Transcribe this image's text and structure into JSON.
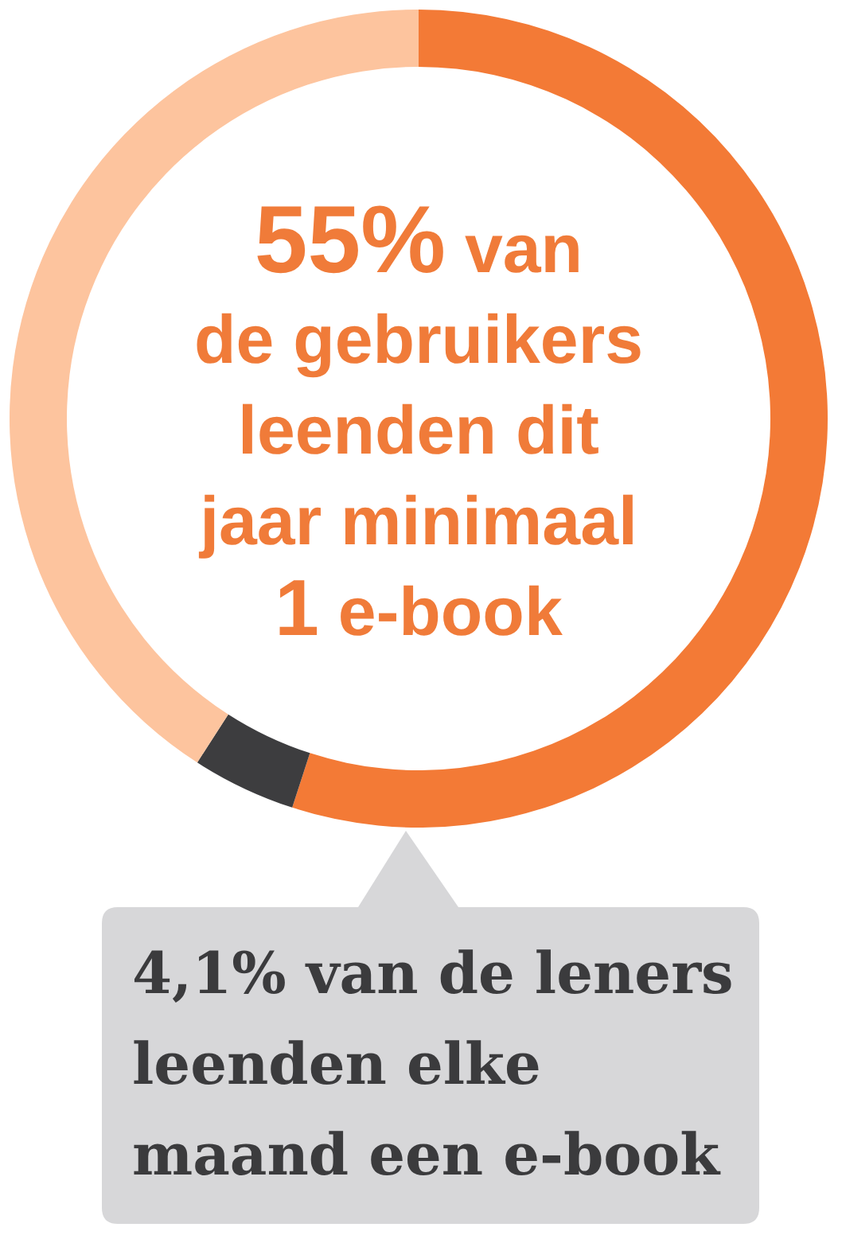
{
  "chart_data": {
    "type": "donut",
    "categories": [
      null,
      null,
      null
    ],
    "values": [
      55,
      4.1,
      40.9
    ],
    "colors": [
      "#f37a36",
      "#3d3d3f",
      "#fdc49e"
    ],
    "annotations": [
      "55% van\nde gebruikers\nleenden dit\njaar minimaal\n1 e-book",
      "4,1% van de leners\nleenden elke\nmaand een e-book"
    ]
  }
}
